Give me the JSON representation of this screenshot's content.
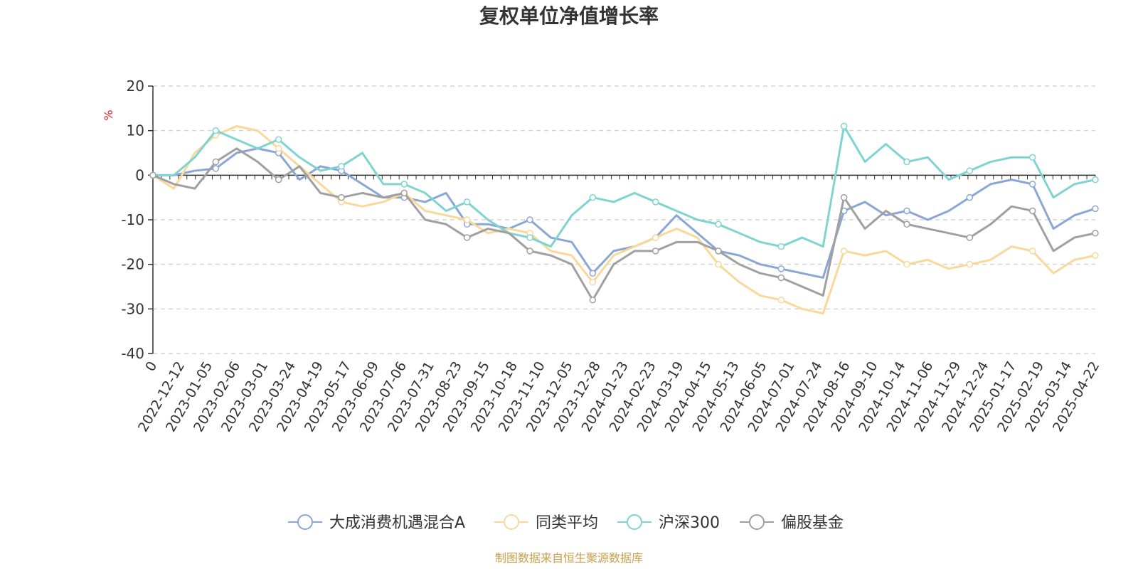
{
  "chart_data": {
    "type": "line",
    "title": "复权单位净值增长率",
    "y_unit": "%",
    "ylim": [
      -40,
      20
    ],
    "y_ticks": [
      20,
      10,
      0,
      -10,
      -20,
      -30,
      -40
    ],
    "grid": "horizontal-dashed",
    "legend_position": "bottom",
    "x_tick_labels": [
      "0",
      "2022-12-12",
      "2023-01-05",
      "2023-02-06",
      "2023-03-01",
      "2023-03-24",
      "2023-04-19",
      "2023-05-17",
      "2023-06-09",
      "2023-07-06",
      "2023-07-31",
      "2023-08-23",
      "2023-09-15",
      "2023-10-18",
      "2023-11-10",
      "2023-12-05",
      "2023-12-28",
      "2024-01-23",
      "2024-02-23",
      "2024-03-19",
      "2024-04-15",
      "2024-05-13",
      "2024-06-05",
      "2024-07-01",
      "2024-07-24",
      "2024-08-16",
      "2024-09-10",
      "2024-10-14",
      "2024-11-06",
      "2024-11-29",
      "2024-12-24",
      "2025-01-17",
      "2025-02-19",
      "2025-03-14",
      "2025-04-22"
    ],
    "series": [
      {
        "name": "大成消费机遇混合A",
        "color": "#8aa6d6",
        "values": [
          0,
          0,
          1,
          1.5,
          5,
          6,
          5,
          -1,
          2,
          1,
          -2,
          -5,
          -5,
          -6,
          -4,
          -11,
          -11,
          -12,
          -10,
          -14,
          -15,
          -22,
          -17,
          -16,
          -14,
          -9,
          -13,
          -17,
          -18,
          -20,
          -21,
          -22,
          -23,
          -8,
          -6,
          -9,
          -8,
          -10,
          -8,
          -5,
          -2,
          -1,
          -2,
          -12,
          -9,
          -7.5
        ]
      },
      {
        "name": "同类平均",
        "color": "#f9d89a",
        "values": [
          0,
          -3,
          5,
          9,
          11,
          10,
          6,
          2,
          -2,
          -6,
          -7,
          -6,
          -4,
          -8,
          -9,
          -10,
          -13,
          -12,
          -13,
          -17,
          -18,
          -24,
          -18,
          -16,
          -14,
          -12,
          -14,
          -20,
          -24,
          -27,
          -28,
          -30,
          -31,
          -17,
          -18,
          -17,
          -20,
          -19,
          -21,
          -20,
          -19,
          -16,
          -17,
          -22,
          -19,
          -18
        ]
      },
      {
        "name": "沪深300",
        "color": "#7fd4d1",
        "values": [
          0,
          0,
          4,
          10,
          8,
          6,
          8,
          4,
          1,
          2,
          5,
          -2,
          -2,
          -4,
          -8,
          -6,
          -10,
          -13,
          -14,
          -16,
          -9,
          -5,
          -6,
          -4,
          -6,
          -8,
          -10,
          -11,
          -13,
          -15,
          -16,
          -14,
          -16,
          11,
          3,
          7,
          3,
          4,
          -1,
          1,
          3,
          4,
          4,
          -5,
          -2,
          -1
        ]
      },
      {
        "name": "偏股基金",
        "color": "#a0a0a0",
        "values": [
          0,
          -2,
          -3,
          3,
          6,
          3,
          -1,
          2,
          -4,
          -5,
          -4,
          -5,
          -4,
          -10,
          -11,
          -14,
          -12,
          -13,
          -17,
          -18,
          -20,
          -28,
          -20,
          -17,
          -17,
          -15,
          -15,
          -17,
          -20,
          -22,
          -23,
          -25,
          -27,
          -5,
          -12,
          -8,
          -11,
          -12,
          -13,
          -14,
          -11,
          -7,
          -8,
          -17,
          -14,
          -13
        ]
      }
    ]
  },
  "source_text": "制图数据来自恒生聚源数据库"
}
